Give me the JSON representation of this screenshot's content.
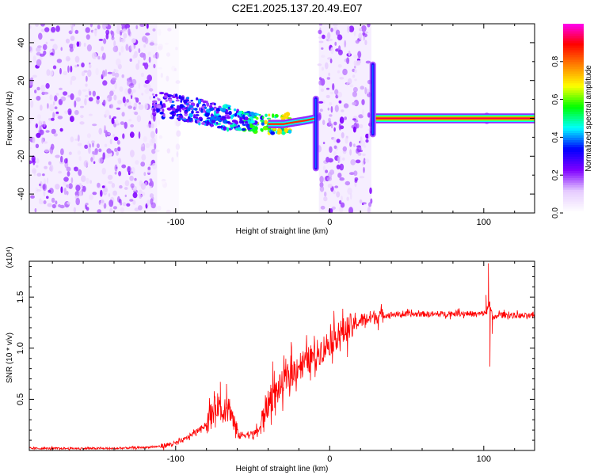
{
  "title": "C2E1.2025.137.20.49.E07",
  "chart_data": [
    {
      "type": "heatmap",
      "xlabel": "Height of straight line (km)",
      "ylabel": "Frequency (Hz)",
      "xlim": [
        -195,
        133
      ],
      "ylim": [
        -50,
        50
      ],
      "x_ticks": [
        -100,
        0,
        100
      ],
      "y_ticks": [
        -40,
        -20,
        0,
        20,
        40
      ],
      "colorbar": {
        "label": "Normalized spectral amplitude",
        "range": [
          0,
          1
        ],
        "ticks": [
          "0.0",
          "0.2",
          "0.4",
          "0.6",
          "0.8"
        ],
        "stops": [
          "#ffffff",
          "#e6ccff",
          "#8000ff",
          "#0000ff",
          "#00ffff",
          "#00ff00",
          "#ffff00",
          "#ff8000",
          "#ff0000",
          "#ff00ff"
        ]
      },
      "ridge": {
        "x": [
          -115,
          -100,
          -80,
          -60,
          -45,
          -30,
          -15,
          -9,
          0,
          15,
          28,
          40,
          60,
          80,
          100,
          120,
          133
        ],
        "y": [
          8,
          6,
          3,
          -1,
          -3,
          -3,
          -1,
          0,
          0,
          1,
          0,
          0,
          0,
          0,
          0,
          0,
          0
        ],
        "amplitude": [
          0.25,
          0.3,
          0.35,
          0.4,
          0.55,
          0.75,
          0.8,
          0.5,
          0.3,
          0.3,
          0.6,
          0.95,
          0.95,
          0.95,
          0.95,
          0.95,
          0.95
        ]
      },
      "vertical_features": [
        {
          "x": -9,
          "ymin": -28,
          "ymax": 12
        },
        {
          "x": 28,
          "ymin": -10,
          "ymax": 30
        },
        {
          "x": 102,
          "ymin": -3,
          "ymax": 3
        }
      ],
      "noise_regions": [
        {
          "x": [
            -195,
            -112
          ],
          "amplitude": 0.15
        },
        {
          "x": [
            -112,
            -98
          ],
          "amplitude": 0.05
        },
        {
          "x": [
            -7,
            27
          ],
          "amplitude": 0.15
        }
      ]
    },
    {
      "type": "line",
      "xlabel": "Height of straight line (km)",
      "ylabel": "SNR (10 * v/v)",
      "ylabel_multiplier": "(x10⁴)",
      "xlim": [
        -195,
        133
      ],
      "ylim": [
        0,
        18500
      ],
      "x_ticks": [
        -100,
        0,
        100
      ],
      "y_ticks": [
        {
          "value": 5000,
          "label": "0.5"
        },
        {
          "value": 10000,
          "label": "1.0"
        },
        {
          "value": 15000,
          "label": "1.5"
        }
      ],
      "color": "#ff0000",
      "series": [
        {
          "x": [
            -195,
            -180,
            -160,
            -140,
            -120,
            -110,
            -100,
            -95,
            -90,
            -85,
            -80,
            -75,
            -72,
            -70,
            -67,
            -64,
            -62,
            -60,
            -58,
            -55,
            -50,
            -45,
            -42,
            -38,
            -35,
            -30,
            -27,
            -24,
            -20,
            -16,
            -12,
            -8,
            -4,
            0,
            5,
            10,
            15,
            20,
            25,
            30,
            35,
            40,
            50,
            60,
            70,
            80,
            90,
            95,
            100,
            102,
            104,
            106,
            110,
            120,
            133
          ],
          "y": [
            200,
            200,
            200,
            200,
            300,
            400,
            700,
            1000,
            1500,
            2000,
            2600,
            4000,
            4600,
            3500,
            4800,
            3800,
            2600,
            1700,
            1400,
            1600,
            1500,
            2200,
            4000,
            5000,
            5600,
            6600,
            7200,
            7600,
            8400,
            8600,
            9000,
            9500,
            10000,
            10600,
            11300,
            11700,
            12200,
            12700,
            12900,
            13100,
            13200,
            13300,
            13300,
            13350,
            13300,
            13400,
            13400,
            13300,
            13400,
            13500,
            14500,
            12800,
            13300,
            13200,
            13100
          ]
        }
      ],
      "spikes": [
        {
          "x": 103,
          "y": 18300
        },
        {
          "x": 104,
          "y": 8200
        },
        {
          "x": 101.5,
          "y": 15200
        },
        {
          "x": 105.5,
          "y": 11400
        },
        {
          "x": -71,
          "y": 6700
        },
        {
          "x": -67,
          "y": 6500
        },
        {
          "x": -75,
          "y": 5800
        },
        {
          "x": -25,
          "y": 10600
        },
        {
          "x": -37,
          "y": 8700
        },
        {
          "x": -10,
          "y": 11200
        }
      ]
    }
  ]
}
